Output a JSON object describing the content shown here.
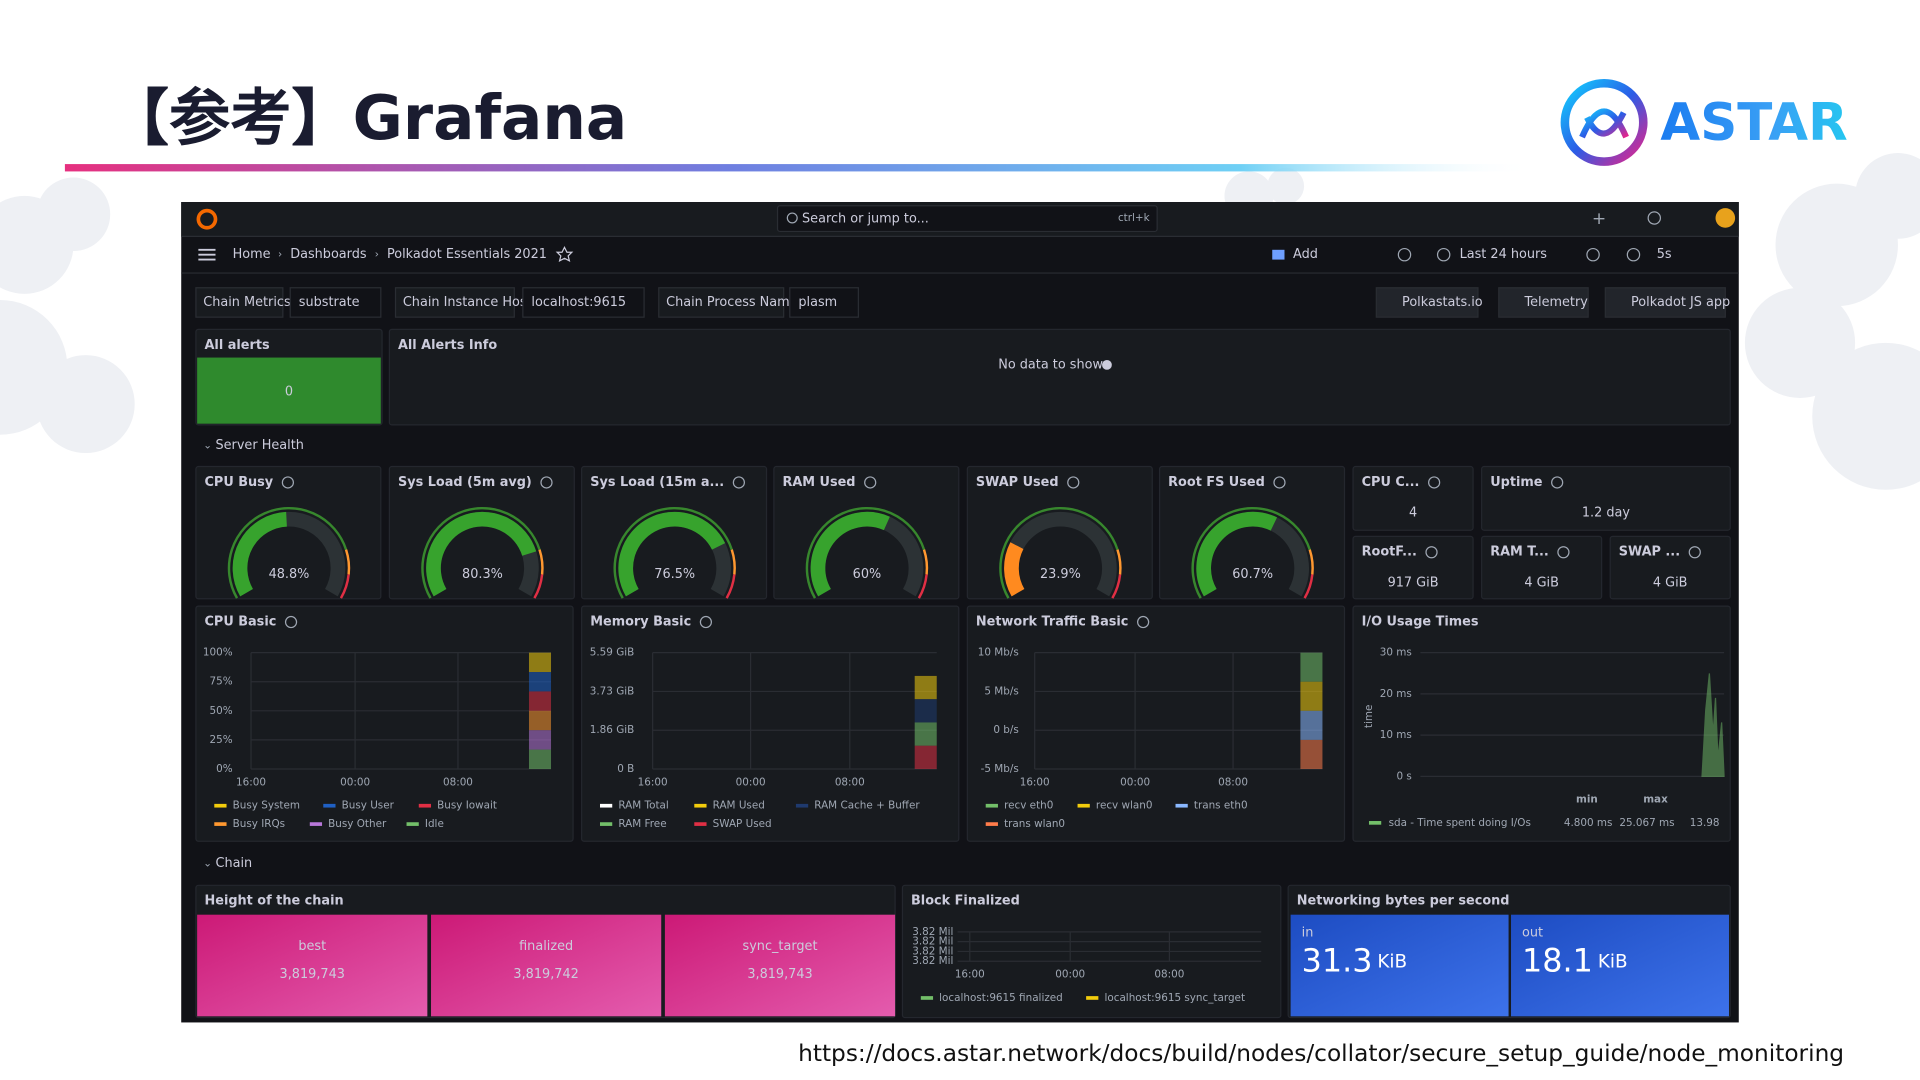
{
  "slide": {
    "title": "【参考】Grafana",
    "logo": "ASTAR",
    "url": "https://docs.astar.network/docs/build/nodes/collator/secure_setup_guide/node_monitoring"
  },
  "grafana": {
    "search": "Search or jump to...",
    "shortcut": "ctrl+k",
    "breadcrumb": [
      "Home",
      "Dashboards",
      "Polkadot Essentials 2021"
    ],
    "toolbar": {
      "add": "Add",
      "range": "Last 24 hours",
      "refresh": "5s"
    },
    "variables": [
      {
        "label": "Chain Metrics",
        "value": "substrate"
      },
      {
        "label": "Chain Instance Host",
        "value": "localhost:9615"
      },
      {
        "label": "Chain Process Name",
        "value": "plasm"
      }
    ],
    "links": [
      "Polkastats.io",
      "Telemetry",
      "Polkadot JS app"
    ],
    "alerts": {
      "title": "All alerts",
      "value": "0"
    },
    "alerts_info": {
      "title": "All Alerts Info",
      "message": "No data to show"
    },
    "rows": [
      "Server Health",
      "Chain"
    ],
    "gauges": [
      {
        "title": "CPU Busy",
        "value": 48.8,
        "label": "48.8%",
        "color": "#37a32d"
      },
      {
        "title": "Sys Load (5m avg)",
        "value": 80.3,
        "label": "80.3%",
        "color": "#37a32d"
      },
      {
        "title": "Sys Load (15m a...",
        "value": 76.5,
        "label": "76.5%",
        "color": "#37a32d"
      },
      {
        "title": "RAM Used",
        "value": 60,
        "label": "60%",
        "color": "#37a32d"
      },
      {
        "title": "SWAP Used",
        "value": 23.9,
        "label": "23.9%",
        "color": "#ff8a1f"
      },
      {
        "title": "Root FS Used",
        "value": 60.7,
        "label": "60.7%",
        "color": "#37a32d"
      }
    ],
    "stats": [
      {
        "title": "CPU C...",
        "value": "4"
      },
      {
        "title": "Uptime",
        "value": "1.2 day"
      },
      {
        "title": "RootF...",
        "value": "917 GiB"
      },
      {
        "title": "RAM T...",
        "value": "4 GiB"
      },
      {
        "title": "SWAP ...",
        "value": "4 GiB"
      }
    ],
    "timeseries": [
      {
        "title": "CPU Basic",
        "yticks": [
          "100%",
          "75%",
          "50%",
          "25%",
          "0%"
        ],
        "xticks": [
          "16:00",
          "00:00",
          "08:00"
        ],
        "legend": [
          {
            "name": "Busy System",
            "color": "#f2cc0c"
          },
          {
            "name": "Busy User",
            "color": "#1f60c4"
          },
          {
            "name": "Busy Iowait",
            "color": "#e02f44"
          },
          {
            "name": "Busy IRQs",
            "color": "#ff9830"
          },
          {
            "name": "Busy Other",
            "color": "#b877d9"
          },
          {
            "name": "Idle",
            "color": "#73bf69"
          }
        ]
      },
      {
        "title": "Memory Basic",
        "yticks": [
          "5.59 GiB",
          "3.73 GiB",
          "1.86 GiB",
          "0 B"
        ],
        "xticks": [
          "16:00",
          "00:00",
          "08:00"
        ],
        "legend": [
          {
            "name": "RAM Total",
            "color": "#ffffff"
          },
          {
            "name": "RAM Used",
            "color": "#f2cc0c"
          },
          {
            "name": "RAM Cache + Buffer",
            "color": "#1f3a6e"
          },
          {
            "name": "RAM Free",
            "color": "#73bf69"
          },
          {
            "name": "SWAP Used",
            "color": "#e02f44"
          }
        ]
      },
      {
        "title": "Network Traffic Basic",
        "yticks": [
          "10 Mb/s",
          "5 Mb/s",
          "0 b/s",
          "-5 Mb/s"
        ],
        "xticks": [
          "16:00",
          "00:00",
          "08:00"
        ],
        "legend": [
          {
            "name": "recv eth0",
            "color": "#73bf69"
          },
          {
            "name": "recv wlan0",
            "color": "#f2cc0c"
          },
          {
            "name": "trans eth0",
            "color": "#8ab8ff"
          },
          {
            "name": "trans wlan0",
            "color": "#ff7c4a"
          }
        ]
      }
    ],
    "io": {
      "title": "I/O Usage Times",
      "ylabel": "time",
      "yticks": [
        "30 ms",
        "20 ms",
        "10 ms",
        "0 s"
      ],
      "headers": [
        "min",
        "max"
      ],
      "legend": {
        "name": "sda - Time spent doing I/Os",
        "color": "#73bf69",
        "min": "4.800 ms",
        "max": "25.067 ms",
        "extra": "13.98"
      }
    },
    "chain_height": {
      "title": "Height of the chain",
      "stats": [
        {
          "name": "best",
          "value": "3,819,743"
        },
        {
          "name": "finalized",
          "value": "3,819,742"
        },
        {
          "name": "sync_target",
          "value": "3,819,743"
        }
      ]
    },
    "block_finalized": {
      "title": "Block Finalized",
      "yticks": [
        "3.82 Mil",
        "3.82 Mil",
        "3.82 Mil",
        "3.82 Mil"
      ],
      "xticks": [
        "16:00",
        "00:00",
        "08:00"
      ],
      "legend": [
        {
          "name": "localhost:9615 finalized",
          "color": "#73bf69"
        },
        {
          "name": "localhost:9615 sync_target",
          "color": "#f2cc0c"
        }
      ]
    },
    "net_bytes": {
      "title": "Networking bytes per second",
      "stats": [
        {
          "name": "in",
          "value": "31.3",
          "unit": "KiB"
        },
        {
          "name": "out",
          "value": "18.1",
          "unit": "KiB"
        }
      ]
    }
  }
}
